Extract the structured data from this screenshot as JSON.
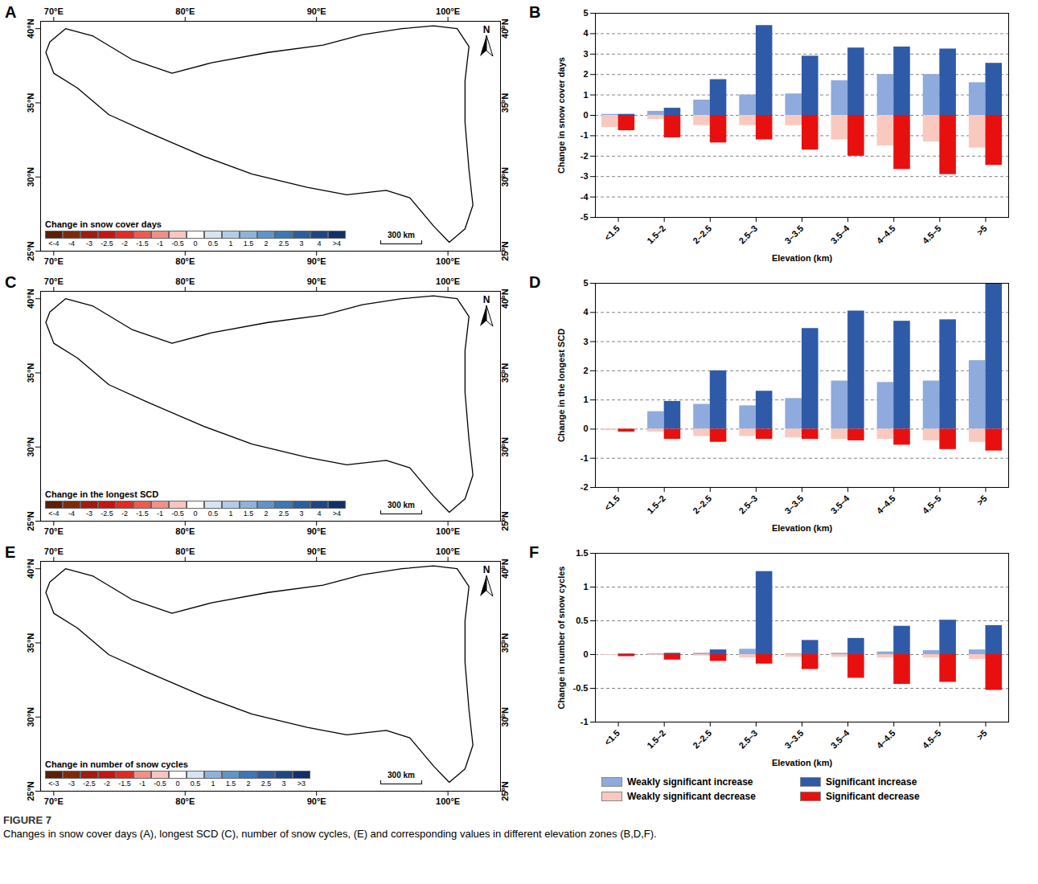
{
  "figure": {
    "label": "FIGURE 7",
    "caption": "Changes in snow cover days (A), longest SCD (C), number of snow cycles, (E) and corresponding values in different elevation zones (B,D,F)."
  },
  "chart_data": [
    {
      "type": "map",
      "panel": "A",
      "xlim": [
        69,
        104
      ],
      "ylim": [
        25,
        40.5
      ],
      "xticks": [
        {
          "value": 70,
          "label": "70°E"
        },
        {
          "value": 80,
          "label": "80°E"
        },
        {
          "value": 90,
          "label": "90°E"
        },
        {
          "value": 100,
          "label": "100°E"
        }
      ],
      "yticks": [
        {
          "value": 25,
          "label": "25°N"
        },
        {
          "value": 30,
          "label": "30°N"
        },
        {
          "value": 35,
          "label": "35°N"
        },
        {
          "value": 40,
          "label": "40°N"
        }
      ],
      "boundary": [
        [
          69.7,
          39.1
        ],
        [
          70.9,
          40.0
        ],
        [
          73.0,
          39.5
        ],
        [
          76.0,
          37.9
        ],
        [
          79.0,
          37.0
        ],
        [
          82.0,
          37.7
        ],
        [
          86.3,
          38.4
        ],
        [
          90.5,
          38.9
        ],
        [
          93.5,
          39.6
        ],
        [
          96.5,
          40.0
        ],
        [
          98.9,
          40.2
        ],
        [
          100.7,
          40.0
        ],
        [
          101.6,
          38.8
        ],
        [
          101.3,
          36.5
        ],
        [
          101.3,
          33.7
        ],
        [
          101.6,
          30.5
        ],
        [
          101.9,
          28.1
        ],
        [
          101.3,
          26.5
        ],
        [
          100.1,
          25.6
        ],
        [
          98.9,
          26.7
        ],
        [
          97.1,
          28.6
        ],
        [
          95.3,
          29.1
        ],
        [
          92.3,
          28.8
        ],
        [
          89.3,
          29.3
        ],
        [
          85.1,
          30.2
        ],
        [
          81.4,
          31.4
        ],
        [
          77.2,
          33.0
        ],
        [
          74.2,
          34.2
        ],
        [
          71.8,
          36.0
        ],
        [
          70.0,
          37.0
        ],
        [
          69.4,
          38.4
        ]
      ],
      "colorbar": {
        "title": "Change in snow cover days",
        "labels": [
          "<-4",
          "-4",
          "-3",
          "-2.5",
          "-2",
          "-1.5",
          "-1",
          "-0.5",
          "0",
          "0.5",
          "1",
          "1.5",
          "2",
          "2.5",
          "3",
          "4",
          ">4"
        ],
        "colors": [
          "#5a1f05",
          "#7d2a0a",
          "#a31a10",
          "#c8140f",
          "#e22a22",
          "#ef5a4f",
          "#f48f86",
          "#f9c5be",
          "#ffffff",
          "#d6e4f2",
          "#b4cde6",
          "#8db3da",
          "#5f95c9",
          "#3b78b6",
          "#2a5ea0",
          "#1d4686",
          "#12306a"
        ]
      },
      "scale_bar": "300 km",
      "north_label": "N"
    },
    {
      "type": "bar",
      "panel": "B",
      "xlabel": "Elevation (km)",
      "ylabel": "Change in snow cover days",
      "categories": [
        "<1.5",
        "1.5–2",
        "2–2.5",
        "2.5–3",
        "3–3.5",
        "3.5–4",
        "4–4.5",
        "4.5–5",
        ">5"
      ],
      "ylim": [
        -5,
        5
      ],
      "yticks": [
        -5,
        -4,
        -3,
        -2,
        -1,
        0,
        1,
        2,
        3,
        4,
        5
      ],
      "grid": true,
      "series": [
        {
          "name": "Weakly significant increase",
          "color": "#8faadc",
          "values": [
            0.05,
            0.2,
            0.75,
            1.0,
            1.05,
            1.7,
            2.0,
            2.0,
            1.6
          ]
        },
        {
          "name": "Significant increase",
          "color": "#2e5aa8",
          "values": [
            0.05,
            0.35,
            1.75,
            4.4,
            2.9,
            3.3,
            3.35,
            3.25,
            2.55
          ]
        },
        {
          "name": "Weakly significant decrease",
          "color": "#f9c9c0",
          "values": [
            -0.6,
            -0.2,
            -0.5,
            -0.5,
            -0.5,
            -1.2,
            -1.5,
            -1.3,
            -1.6
          ]
        },
        {
          "name": "Significant decrease",
          "color": "#e8100f",
          "values": [
            -0.75,
            -1.1,
            -1.35,
            -1.2,
            -1.7,
            -2.0,
            -2.65,
            -2.9,
            -2.45
          ]
        }
      ]
    },
    {
      "type": "map",
      "panel": "C",
      "xlim": [
        69,
        104
      ],
      "ylim": [
        25,
        40.5
      ],
      "xticks": [
        {
          "value": 70,
          "label": "70°E"
        },
        {
          "value": 80,
          "label": "80°E"
        },
        {
          "value": 90,
          "label": "90°E"
        },
        {
          "value": 100,
          "label": "100°E"
        }
      ],
      "yticks": [
        {
          "value": 25,
          "label": "25°N"
        },
        {
          "value": 30,
          "label": "30°N"
        },
        {
          "value": 35,
          "label": "35°N"
        },
        {
          "value": 40,
          "label": "40°N"
        }
      ],
      "boundary": [
        [
          69.7,
          39.1
        ],
        [
          70.9,
          40.0
        ],
        [
          73.0,
          39.5
        ],
        [
          76.0,
          37.9
        ],
        [
          79.0,
          37.0
        ],
        [
          82.0,
          37.7
        ],
        [
          86.3,
          38.4
        ],
        [
          90.5,
          38.9
        ],
        [
          93.5,
          39.6
        ],
        [
          96.5,
          40.0
        ],
        [
          98.9,
          40.2
        ],
        [
          100.7,
          40.0
        ],
        [
          101.6,
          38.8
        ],
        [
          101.3,
          36.5
        ],
        [
          101.3,
          33.7
        ],
        [
          101.6,
          30.5
        ],
        [
          101.9,
          28.1
        ],
        [
          101.3,
          26.5
        ],
        [
          100.1,
          25.6
        ],
        [
          98.9,
          26.7
        ],
        [
          97.1,
          28.6
        ],
        [
          95.3,
          29.1
        ],
        [
          92.3,
          28.8
        ],
        [
          89.3,
          29.3
        ],
        [
          85.1,
          30.2
        ],
        [
          81.4,
          31.4
        ],
        [
          77.2,
          33.0
        ],
        [
          74.2,
          34.2
        ],
        [
          71.8,
          36.0
        ],
        [
          70.0,
          37.0
        ],
        [
          69.4,
          38.4
        ]
      ],
      "colorbar": {
        "title": "Change in the longest SCD",
        "labels": [
          "<-4",
          "-4",
          "-3",
          "-2.5",
          "-2",
          "-1.5",
          "-1",
          "-0.5",
          "0",
          "0.5",
          "1",
          "1.5",
          "2",
          "2.5",
          "3",
          "4",
          ">4"
        ],
        "colors": [
          "#5a1f05",
          "#7d2a0a",
          "#a31a10",
          "#c8140f",
          "#e22a22",
          "#ef5a4f",
          "#f48f86",
          "#f9c5be",
          "#ffffff",
          "#d6e4f2",
          "#b4cde6",
          "#8db3da",
          "#5f95c9",
          "#3b78b6",
          "#2a5ea0",
          "#1d4686",
          "#12306a"
        ]
      },
      "scale_bar": "300 km",
      "north_label": "N"
    },
    {
      "type": "bar",
      "panel": "D",
      "xlabel": "Elevation (km)",
      "ylabel": "Change in the longest SCD",
      "categories": [
        "<1.5",
        "1.5–2",
        "2–2.5",
        "2.5–3",
        "3–3.5",
        "3.5–4",
        "4–4.5",
        "4.5–5",
        ">5"
      ],
      "ylim": [
        -2,
        5
      ],
      "yticks": [
        -2,
        -1,
        0,
        1,
        2,
        3,
        4,
        5
      ],
      "grid": true,
      "series": [
        {
          "name": "Weakly significant increase",
          "color": "#8faadc",
          "values": [
            0.0,
            0.6,
            0.85,
            0.8,
            1.05,
            1.65,
            1.6,
            1.65,
            2.35
          ]
        },
        {
          "name": "Significant increase",
          "color": "#2e5aa8",
          "values": [
            0.0,
            0.95,
            2.0,
            1.3,
            3.45,
            4.05,
            3.7,
            3.75,
            5.0
          ]
        },
        {
          "name": "Weakly significant decrease",
          "color": "#f9c9c0",
          "values": [
            -0.05,
            -0.1,
            -0.25,
            -0.25,
            -0.3,
            -0.35,
            -0.35,
            -0.4,
            -0.45
          ]
        },
        {
          "name": "Significant decrease",
          "color": "#e8100f",
          "values": [
            -0.1,
            -0.35,
            -0.45,
            -0.35,
            -0.35,
            -0.4,
            -0.55,
            -0.7,
            -0.75
          ]
        }
      ]
    },
    {
      "type": "map",
      "panel": "E",
      "xlim": [
        69,
        104
      ],
      "ylim": [
        25,
        40.5
      ],
      "xticks": [
        {
          "value": 70,
          "label": "70°E"
        },
        {
          "value": 80,
          "label": "80°E"
        },
        {
          "value": 90,
          "label": "90°E"
        },
        {
          "value": 100,
          "label": "100°E"
        }
      ],
      "yticks": [
        {
          "value": 25,
          "label": "25°N"
        },
        {
          "value": 30,
          "label": "30°N"
        },
        {
          "value": 35,
          "label": "35°N"
        },
        {
          "value": 40,
          "label": "40°N"
        }
      ],
      "boundary": [
        [
          69.7,
          39.1
        ],
        [
          70.9,
          40.0
        ],
        [
          73.0,
          39.5
        ],
        [
          76.0,
          37.9
        ],
        [
          79.0,
          37.0
        ],
        [
          82.0,
          37.7
        ],
        [
          86.3,
          38.4
        ],
        [
          90.5,
          38.9
        ],
        [
          93.5,
          39.6
        ],
        [
          96.5,
          40.0
        ],
        [
          98.9,
          40.2
        ],
        [
          100.7,
          40.0
        ],
        [
          101.6,
          38.8
        ],
        [
          101.3,
          36.5
        ],
        [
          101.3,
          33.7
        ],
        [
          101.6,
          30.5
        ],
        [
          101.9,
          28.1
        ],
        [
          101.3,
          26.5
        ],
        [
          100.1,
          25.6
        ],
        [
          98.9,
          26.7
        ],
        [
          97.1,
          28.6
        ],
        [
          95.3,
          29.1
        ],
        [
          92.3,
          28.8
        ],
        [
          89.3,
          29.3
        ],
        [
          85.1,
          30.2
        ],
        [
          81.4,
          31.4
        ],
        [
          77.2,
          33.0
        ],
        [
          74.2,
          34.2
        ],
        [
          71.8,
          36.0
        ],
        [
          70.0,
          37.0
        ],
        [
          69.4,
          38.4
        ]
      ],
      "colorbar": {
        "title": "Change in number of snow cycles",
        "labels": [
          "<-3",
          "-3",
          "-2.5",
          "-2",
          "-1.5",
          "-1",
          "-0.5",
          "0",
          "0.5",
          "1",
          "1.5",
          "2",
          "2.5",
          "3",
          ">3"
        ],
        "colors": [
          "#5a1f05",
          "#7d2a0a",
          "#a31a10",
          "#c8140f",
          "#e22a22",
          "#f48f86",
          "#f9c5be",
          "#ffffff",
          "#d6e4f2",
          "#8db3da",
          "#5f95c9",
          "#3b78b6",
          "#2a5ea0",
          "#1d4686",
          "#12306a"
        ]
      },
      "scale_bar": "300 km",
      "north_label": "N"
    },
    {
      "type": "bar",
      "panel": "F",
      "xlabel": "Elevation (km)",
      "ylabel": "Change in number of snow cycles",
      "categories": [
        "<1.5",
        "1.5–2",
        "2–2.5",
        "2.5–3",
        "3–3.5",
        "3.5–4",
        "4–4.5",
        "4.5–5",
        ">5"
      ],
      "ylim": [
        -1,
        1.5
      ],
      "yticks": [
        -1,
        -0.5,
        0,
        0.5,
        1,
        1.5
      ],
      "grid": true,
      "legend": "bottom",
      "series": [
        {
          "name": "Weakly significant increase",
          "color": "#8faadc",
          "values": [
            0.0,
            0.01,
            0.02,
            0.08,
            0.01,
            0.02,
            0.04,
            0.06,
            0.07
          ]
        },
        {
          "name": "Significant increase",
          "color": "#2e5aa8",
          "values": [
            0.01,
            0.02,
            0.07,
            1.23,
            0.21,
            0.24,
            0.42,
            0.51,
            0.43
          ]
        },
        {
          "name": "Weakly significant decrease",
          "color": "#f9c9c0",
          "values": [
            -0.01,
            -0.01,
            -0.02,
            -0.05,
            -0.04,
            -0.04,
            -0.05,
            -0.05,
            -0.07
          ]
        },
        {
          "name": "Significant decrease",
          "color": "#e8100f",
          "values": [
            -0.03,
            -0.08,
            -0.1,
            -0.14,
            -0.22,
            -0.35,
            -0.44,
            -0.41,
            -0.53
          ]
        }
      ]
    }
  ]
}
